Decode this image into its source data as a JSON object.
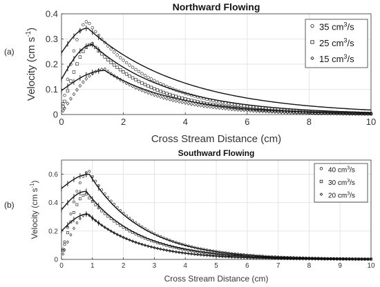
{
  "chart_data": [
    {
      "type": "line",
      "panel_label": "(a)",
      "title": "Northward Flowing",
      "xlabel": "Cross Stream Distance (cm)",
      "ylabel": "Velocity (cm s",
      "ylabel_sup": "-1",
      "ylabel_close": ")",
      "xlim": [
        0,
        10
      ],
      "ylim": [
        0,
        0.4
      ],
      "xticks": [
        "0",
        "2",
        "4",
        "6",
        "8",
        "10"
      ],
      "xtick_values": [
        0,
        2,
        4,
        6,
        8,
        10
      ],
      "yticks": [
        "0",
        "0.1",
        "0.2",
        "0.3",
        "0.4"
      ],
      "ytick_values": [
        0,
        0.1,
        0.2,
        0.3,
        0.4
      ],
      "grid": true,
      "legend_position": "top-right",
      "series": [
        {
          "name": "35 cm",
          "name_sup": "3",
          "name_tail": "/s",
          "marker": "circle",
          "peak_x": 0.85,
          "fit_peak": 0.343,
          "data_peak": 0.37,
          "fit_start": 0.245,
          "data_start": 0.01,
          "fit_end": 0.018,
          "data_end": 0.005
        },
        {
          "name": "25 cm",
          "name_sup": "3",
          "name_tail": "/s",
          "marker": "square",
          "peak_x": 1.0,
          "fit_peak": 0.278,
          "data_peak": 0.28,
          "fit_start": 0.14,
          "data_start": 0.01,
          "fit_end": 0.008,
          "data_end": 0.003
        },
        {
          "name": "15 cm",
          "name_sup": "3",
          "name_tail": "/s",
          "marker": "diamond",
          "peak_x": 1.4,
          "fit_peak": 0.175,
          "data_peak": 0.18,
          "fit_start": 0.095,
          "data_start": 0.005,
          "fit_end": 0.004,
          "data_end": 0.002
        }
      ]
    },
    {
      "type": "line",
      "panel_label": "(b)",
      "title": "Southward Flowing",
      "xlabel": "Cross Stream Distance (cm)",
      "ylabel": "Velocity (cm s",
      "ylabel_sup": "-1",
      "ylabel_close": ")",
      "xlim": [
        0,
        10
      ],
      "ylim": [
        0,
        0.7
      ],
      "xticks": [
        "0",
        "1",
        "2",
        "3",
        "4",
        "5",
        "6",
        "7",
        "8",
        "9",
        "10"
      ],
      "xtick_values": [
        0,
        1,
        2,
        3,
        4,
        5,
        6,
        7,
        8,
        9,
        10
      ],
      "yticks": [
        "0",
        "0.2",
        "0.4",
        "0.6"
      ],
      "ytick_values": [
        0,
        0.2,
        0.4,
        0.6
      ],
      "grid": true,
      "legend_position": "top-right",
      "series": [
        {
          "name": "40 cm",
          "name_sup": "3",
          "name_tail": "/s",
          "marker": "circle",
          "peak_x": 0.9,
          "fit_peak": 0.6,
          "data_peak": 0.62,
          "fit_start": 0.5,
          "data_start": 0.02,
          "fit_end": 0.003,
          "data_end": 0.003
        },
        {
          "name": "30 cm",
          "name_sup": "3",
          "name_tail": "/s",
          "marker": "square",
          "peak_x": 0.8,
          "fit_peak": 0.48,
          "data_peak": 0.46,
          "fit_start": 0.35,
          "data_start": 0.02,
          "fit_end": 0.002,
          "data_end": 0.002
        },
        {
          "name": "20 cm",
          "name_sup": "3",
          "name_tail": "/s",
          "marker": "diamond",
          "peak_x": 0.85,
          "fit_peak": 0.32,
          "data_peak": 0.32,
          "fit_start": 0.2,
          "data_start": 0.01,
          "fit_end": 0.001,
          "data_end": 0.001
        }
      ]
    }
  ]
}
